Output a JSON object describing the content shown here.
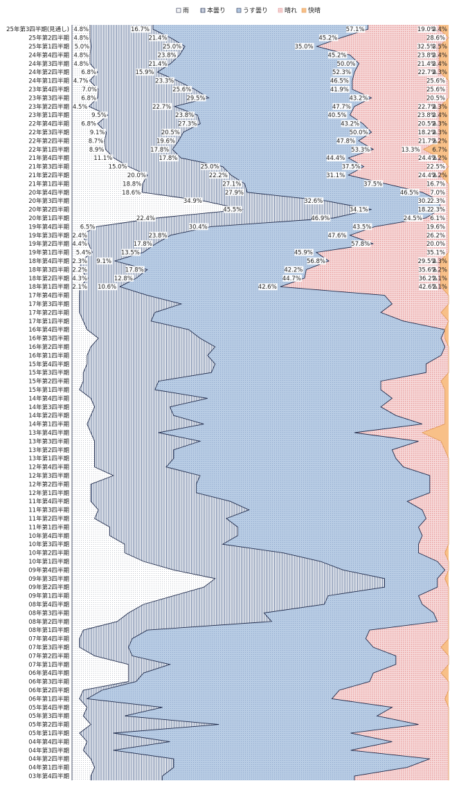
{
  "chart_data": {
    "type": "bar",
    "stacked": "100%",
    "orientation": "horizontal",
    "legend_position": "top",
    "grid": false,
    "series_names": [
      "雨",
      "本曇り",
      "うす曇り",
      "晴れ",
      "快晴"
    ],
    "colors": {
      "rain": "#ffffff",
      "overcast": "#ffffff",
      "cloudy": "#b8cce4",
      "sunny": "#f2c4c4",
      "clear": "#f8c088",
      "edge": "#1f2a4a"
    },
    "categories": [
      "25年第3四半期(見通し)",
      "25年第2四半期",
      "25年第1四半期",
      "24年第4四半期",
      "24年第3四半期",
      "24年第2四半期",
      "24年第1四半期",
      "23年第4四半期",
      "23年第3四半期",
      "23年第2四半期",
      "23年第1四半期",
      "22年第4四半期",
      "22年第3四半期",
      "22年第2四半期",
      "22年第1四半期",
      "21年第4四半期",
      "21年第3四半期",
      "21年第2四半期",
      "21年第1四半期",
      "20年第4四半期",
      "20年第3四半期",
      "20年第2四半期",
      "20年第1四半期",
      "19年第4四半期",
      "19年第3四半期",
      "19年第2四半期",
      "19年第1四半期",
      "18年第4四半期",
      "18年第3四半期",
      "18年第2四半期",
      "18年第1四半期",
      "17年第4四半期",
      "17年第3四半期",
      "17年第2四半期",
      "17年第1四半期",
      "16年第4四半期",
      "16年第3四半期",
      "16年第2四半期",
      "16年第1四半期",
      "15年第4四半期",
      "15年第3四半期",
      "15年第2四半期",
      "15年第1四半期",
      "14年第4四半期",
      "14年第3四半期",
      "14年第2四半期",
      "14年第1四半期",
      "13年第4四半期",
      "13年第3四半期",
      "13年第2四半期",
      "13年第1四半期",
      "12年第4四半期",
      "12年第3四半期",
      "12年第2四半期",
      "12年第1四半期",
      "11年第4四半期",
      "11年第3四半期",
      "11年第2四半期",
      "11年第1四半期",
      "10年第4四半期",
      "10年第3四半期",
      "10年第2四半期",
      "10年第1四半期",
      "09年第4四半期",
      "09年第3四半期",
      "09年第2四半期",
      "09年第1四半期",
      "08年第4四半期",
      "08年第3四半期",
      "08年第2四半期",
      "08年第1四半期",
      "07年第4四半期",
      "07年第3四半期",
      "07年第2四半期",
      "07年第1四半期",
      "06年第4四半期",
      "06年第3四半期",
      "06年第2四半期",
      "06年第1四半期",
      "05年第4四半期",
      "05年第3四半期",
      "05年第2四半期",
      "05年第1四半期",
      "04年第4四半期",
      "04年第3四半期",
      "04年第2四半期",
      "04年第1四半期",
      "03年第4四半期"
    ],
    "labeled": [
      [
        4.8,
        16.7,
        57.1,
        19.0,
        2.4
      ],
      [
        4.8,
        21.4,
        45.2,
        28.6,
        0.0
      ],
      [
        5.0,
        25.0,
        35.0,
        32.5,
        2.5
      ],
      [
        4.8,
        23.8,
        45.2,
        23.8,
        2.4
      ],
      [
        4.8,
        21.4,
        50.0,
        21.4,
        2.4
      ],
      [
        6.8,
        15.9,
        52.3,
        22.7,
        2.3
      ],
      [
        4.7,
        23.3,
        46.5,
        25.6,
        0.0
      ],
      [
        7.0,
        25.6,
        41.9,
        25.6,
        0.0
      ],
      [
        6.8,
        29.5,
        43.2,
        20.5,
        0.0
      ],
      [
        4.5,
        22.7,
        47.7,
        22.7,
        2.3
      ],
      [
        9.5,
        23.8,
        40.5,
        23.8,
        2.4
      ],
      [
        6.8,
        27.3,
        43.2,
        20.5,
        2.3
      ],
      [
        9.1,
        20.5,
        50.0,
        18.2,
        2.3
      ],
      [
        8.7,
        19.6,
        47.8,
        21.7,
        2.2
      ],
      [
        8.9,
        17.8,
        53.3,
        13.3,
        6.7
      ],
      [
        11.1,
        17.8,
        44.4,
        24.4,
        2.2
      ],
      [
        15.0,
        25.0,
        37.5,
        22.5,
        0.0
      ],
      [
        20.0,
        22.2,
        31.1,
        24.4,
        2.2
      ],
      [
        18.8,
        27.1,
        37.5,
        16.7,
        0.0
      ],
      [
        18.6,
        27.9,
        46.5,
        7.0,
        0.0
      ],
      [
        34.9,
        32.6,
        30.2,
        2.3,
        0.0
      ],
      [
        45.5,
        34.1,
        18.2,
        2.3,
        0.0
      ],
      [
        22.4,
        46.9,
        24.5,
        6.1,
        0.0
      ],
      [
        6.5,
        30.4,
        43.5,
        19.6,
        0.0
      ],
      [
        2.4,
        23.8,
        47.6,
        26.2,
        0.0
      ],
      [
        4.4,
        17.8,
        57.8,
        20.0,
        0.0
      ],
      [
        5.4,
        13.5,
        45.9,
        35.1,
        0.0
      ],
      [
        2.3,
        9.1,
        56.8,
        29.5,
        2.3
      ],
      [
        2.2,
        17.8,
        42.2,
        35.6,
        2.2
      ],
      [
        4.3,
        12.8,
        44.7,
        36.2,
        2.1
      ],
      [
        2.1,
        10.6,
        42.6,
        42.6,
        2.1
      ]
    ],
    "unlabeled": [
      [
        2,
        18,
        63,
        17,
        0
      ],
      [
        2,
        27,
        56,
        15,
        0
      ],
      [
        2,
        20,
        60,
        16,
        2
      ],
      [
        3,
        18,
        67,
        12,
        0
      ],
      [
        4,
        27,
        68,
        0,
        1
      ],
      [
        7,
        27,
        64,
        1,
        1
      ],
      [
        5,
        33,
        61,
        1,
        0
      ],
      [
        4,
        32,
        62,
        2,
        0
      ],
      [
        4,
        34,
        56,
        6,
        0
      ],
      [
        3,
        34,
        57,
        6,
        0
      ],
      [
        3,
        20,
        59,
        16,
        2
      ],
      [
        2,
        20,
        60,
        17,
        1
      ],
      [
        5,
        31,
        49,
        14,
        1
      ],
      [
        6,
        20,
        56,
        17,
        1
      ],
      [
        5,
        22,
        59,
        13,
        1
      ],
      [
        4,
        31,
        58,
        6,
        1
      ],
      [
        5,
        18,
        52,
        18,
        7
      ],
      [
        6,
        28,
        58,
        6,
        2
      ],
      [
        6,
        21,
        58,
        14,
        1
      ],
      [
        6,
        21,
        59,
        14,
        0
      ],
      [
        6,
        19,
        63,
        12,
        0
      ],
      [
        11,
        23,
        61,
        5,
        0
      ],
      [
        5,
        28,
        62,
        5,
        0
      ],
      [
        5,
        28,
        62,
        5,
        0
      ],
      [
        5,
        37,
        47,
        11,
        0
      ],
      [
        7,
        40,
        46,
        7,
        0
      ],
      [
        6,
        35,
        53,
        6,
        0
      ],
      [
        10,
        34,
        48,
        8,
        0
      ],
      [
        10,
        34,
        49,
        7,
        0
      ],
      [
        14,
        26,
        52,
        8,
        0
      ],
      [
        14,
        42,
        36,
        7,
        1
      ],
      [
        19,
        47,
        31,
        3,
        0
      ],
      [
        27,
        45,
        27,
        1,
        0
      ],
      [
        38,
        45,
        14,
        2,
        1
      ],
      [
        35,
        48,
        14,
        3,
        0
      ],
      [
        27,
        41,
        24,
        8,
        0
      ],
      [
        19,
        48,
        26,
        7,
        0
      ],
      [
        15,
        36,
        45,
        4,
        0
      ],
      [
        12,
        41,
        44,
        3,
        0
      ],
      [
        3,
        17,
        59,
        21,
        0
      ],
      [
        2,
        14,
        62,
        22,
        0
      ],
      [
        2,
        13,
        65,
        18,
        2
      ],
      [
        6,
        10,
        70,
        14,
        0
      ],
      [
        15,
        11,
        60,
        14,
        0
      ],
      [
        15,
        4,
        61,
        18,
        2
      ],
      [
        15,
        2,
        62,
        21,
        0
      ],
      [
        3,
        5,
        63,
        29,
        0
      ],
      [
        2,
        2,
        65,
        30,
        1
      ],
      [
        4,
        20,
        61,
        15,
        0
      ],
      [
        3,
        11,
        67,
        19,
        0
      ],
      [
        5,
        34,
        53,
        8,
        0
      ],
      [
        2,
        9,
        63,
        26,
        0
      ],
      [
        4,
        22,
        59,
        15,
        0
      ],
      [
        3,
        8,
        63,
        26,
        0
      ],
      [
        5,
        22,
        68,
        5,
        0
      ],
      [
        6,
        21,
        62,
        11,
        0
      ],
      [
        5,
        19,
        51,
        25,
        0
      ]
    ]
  },
  "legend": {
    "rain": "雨",
    "overcast": "本曇り",
    "cloudy": "うす曇り",
    "sunny": "晴れ",
    "clear": "快晴"
  }
}
